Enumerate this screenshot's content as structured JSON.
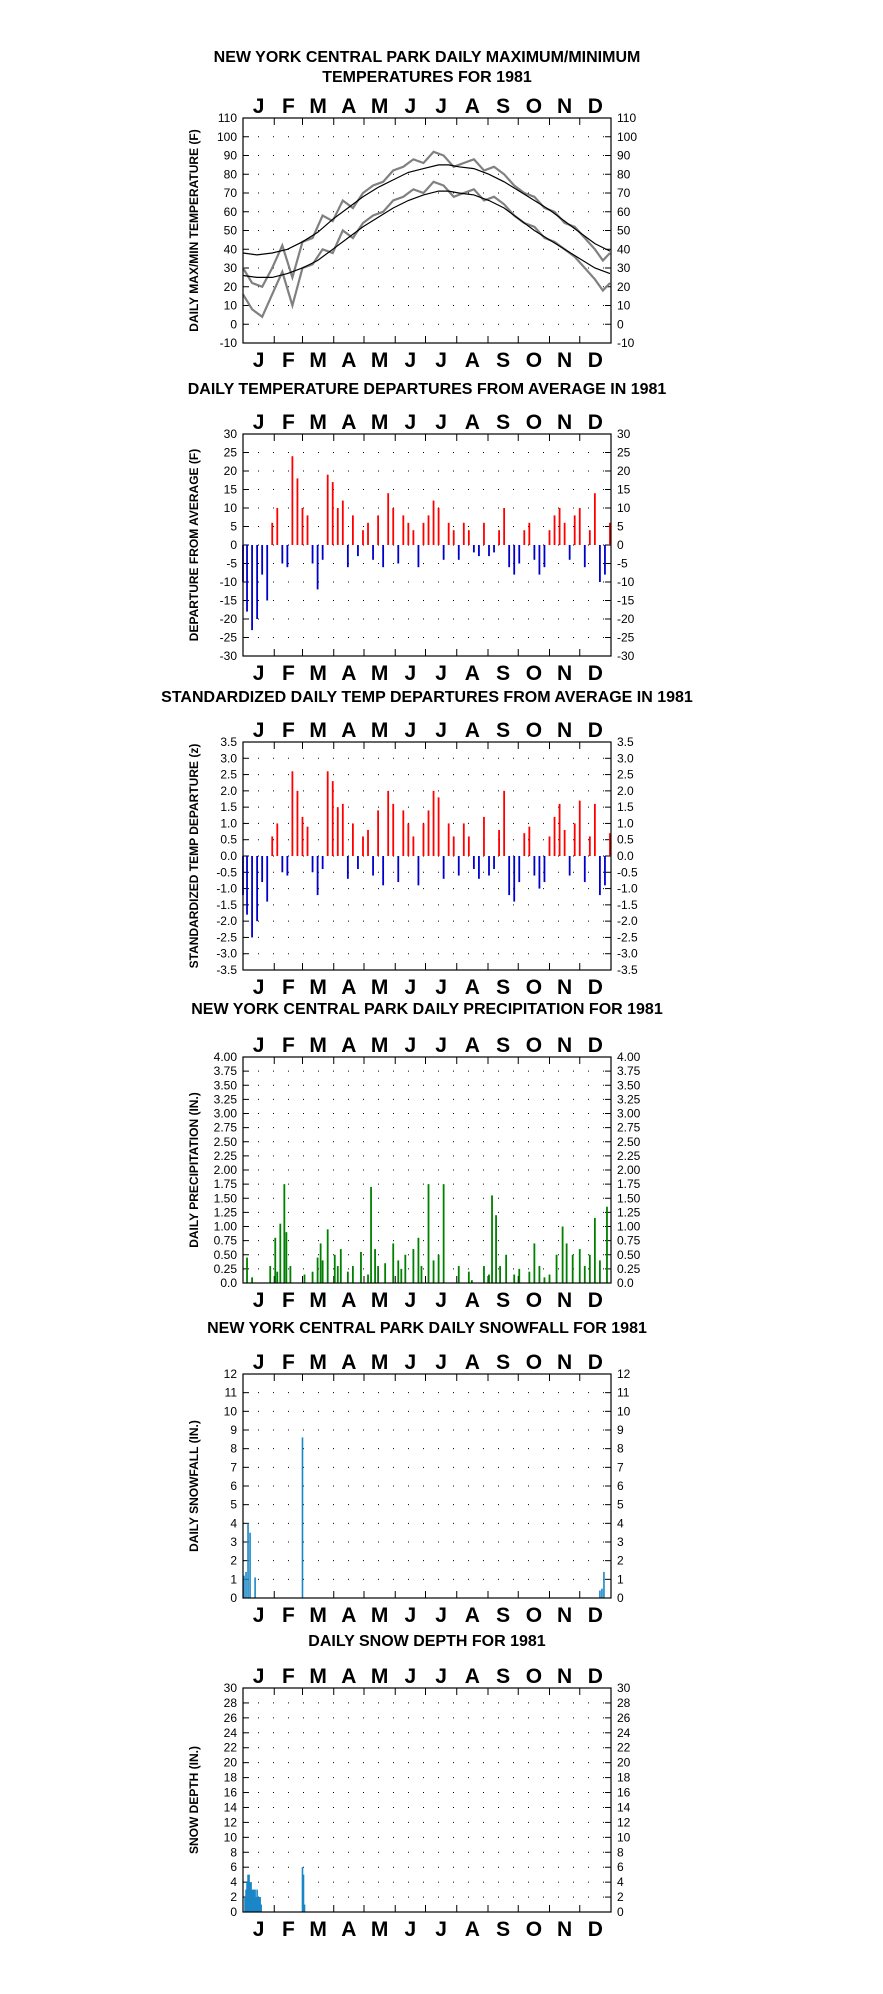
{
  "months": [
    "J",
    "F",
    "M",
    "A",
    "M",
    "J",
    "J",
    "A",
    "S",
    "O",
    "N",
    "D"
  ],
  "colors": {
    "maxmin": "#808080",
    "departure_pos": "#ff0000",
    "departure_neg": "#0000cc",
    "precip": "#008000",
    "snow": "#1a86c8",
    "axis": "#000000"
  },
  "chart_data": [
    {
      "type": "line",
      "title_lines": [
        "NEW YORK CENTRAL PARK DAILY MAXIMUM/MINIMUM",
        "TEMPERATURES FOR 1981"
      ],
      "ylabel": "DAILY MAX/MIN TEMPERATURE (F)",
      "ylim": [
        -10,
        110
      ],
      "yticks": [
        "-10",
        "0",
        "10",
        "20",
        "30",
        "40",
        "50",
        "60",
        "70",
        "80",
        "90",
        "100",
        "110"
      ],
      "grid": true,
      "series": [
        {
          "key": "max",
          "x": [
            1,
            10,
            20,
            30,
            40,
            50,
            60,
            70,
            80,
            90,
            100,
            110,
            120,
            130,
            140,
            150,
            160,
            170,
            180,
            190,
            200,
            210,
            220,
            230,
            240,
            250,
            260,
            270,
            280,
            290,
            300,
            310,
            320,
            330,
            340,
            350,
            358,
            365
          ],
          "values": [
            30,
            22,
            20,
            30,
            42,
            25,
            44,
            46,
            58,
            55,
            66,
            62,
            70,
            74,
            76,
            82,
            84,
            88,
            86,
            92,
            90,
            84,
            86,
            88,
            82,
            84,
            80,
            74,
            70,
            68,
            62,
            60,
            54,
            52,
            46,
            40,
            34,
            38
          ]
        },
        {
          "key": "min",
          "x": [
            1,
            10,
            20,
            30,
            40,
            50,
            60,
            70,
            80,
            90,
            100,
            110,
            120,
            130,
            140,
            150,
            160,
            170,
            180,
            190,
            200,
            210,
            220,
            230,
            240,
            250,
            260,
            270,
            280,
            290,
            300,
            310,
            320,
            330,
            340,
            350,
            358,
            365
          ],
          "values": [
            16,
            8,
            4,
            16,
            28,
            10,
            30,
            32,
            40,
            38,
            50,
            46,
            54,
            58,
            60,
            66,
            68,
            72,
            70,
            76,
            74,
            68,
            70,
            72,
            66,
            68,
            64,
            58,
            54,
            52,
            46,
            44,
            40,
            36,
            30,
            24,
            18,
            22
          ]
        },
        {
          "key": "normal_max",
          "x": [
            1,
            15,
            30,
            45,
            60,
            75,
            90,
            105,
            120,
            135,
            150,
            165,
            180,
            195,
            205,
            215,
            230,
            245,
            260,
            275,
            290,
            305,
            320,
            335,
            350,
            365
          ],
          "values": [
            38,
            37,
            38,
            40,
            44,
            49,
            56,
            62,
            68,
            73,
            77,
            81,
            83,
            85,
            85,
            84,
            83,
            80,
            76,
            71,
            66,
            61,
            55,
            49,
            43,
            39
          ]
        },
        {
          "key": "normal_min",
          "x": [
            1,
            15,
            30,
            45,
            60,
            75,
            90,
            105,
            120,
            135,
            150,
            165,
            180,
            195,
            205,
            215,
            230,
            245,
            260,
            275,
            290,
            305,
            320,
            335,
            350,
            365
          ],
          "values": [
            26,
            25,
            25,
            27,
            30,
            34,
            40,
            46,
            52,
            57,
            62,
            66,
            69,
            71,
            71,
            70,
            69,
            66,
            62,
            56,
            50,
            45,
            40,
            35,
            30,
            27
          ]
        }
      ]
    },
    {
      "type": "bar",
      "title_lines": [
        "DAILY TEMPERATURE DEPARTURES FROM AVERAGE IN 1981"
      ],
      "ylabel": "DEPARTURE FROM AVERAGE (F)",
      "ylim": [
        -30,
        30
      ],
      "yticks": [
        "-30",
        "-25",
        "-20",
        "-15",
        "-10",
        "-5",
        "0",
        "5",
        "10",
        "15",
        "20",
        "25",
        "30"
      ],
      "grid": true,
      "series": [
        {
          "key": "departure",
          "x": [
            1,
            5,
            10,
            15,
            20,
            25,
            30,
            35,
            40,
            45,
            50,
            55,
            60,
            65,
            70,
            75,
            80,
            85,
            90,
            95,
            100,
            105,
            110,
            115,
            120,
            125,
            130,
            135,
            140,
            145,
            150,
            155,
            160,
            165,
            170,
            175,
            180,
            185,
            190,
            195,
            200,
            205,
            210,
            215,
            220,
            225,
            230,
            235,
            240,
            245,
            250,
            255,
            260,
            265,
            270,
            275,
            280,
            285,
            290,
            295,
            300,
            305,
            310,
            315,
            320,
            325,
            330,
            335,
            340,
            345,
            350,
            355,
            360,
            365
          ],
          "values": [
            -10,
            -18,
            -23,
            -20,
            -8,
            -15,
            6,
            10,
            -5,
            -6,
            24,
            18,
            10,
            8,
            -5,
            -12,
            -4,
            19,
            17,
            10,
            12,
            -6,
            8,
            -3,
            4,
            6,
            -4,
            8,
            -6,
            14,
            10,
            -5,
            8,
            6,
            4,
            -6,
            6,
            8,
            12,
            10,
            -4,
            6,
            4,
            -4,
            6,
            4,
            -2,
            -3,
            6,
            -3,
            -2,
            4,
            10,
            -6,
            -8,
            -5,
            4,
            6,
            -4,
            -8,
            -6,
            4,
            8,
            10,
            6,
            -4,
            8,
            10,
            -6,
            4,
            14,
            -10,
            -8,
            6
          ]
        }
      ]
    },
    {
      "type": "bar",
      "title_lines": [
        "STANDARDIZED DAILY TEMP DEPARTURES FROM AVERAGE IN 1981"
      ],
      "ylabel": "STANDARDIZED TEMP DEPARTURE (z)",
      "ylim": [
        -3.5,
        3.5
      ],
      "yticks": [
        "-3.5",
        "-3.0",
        "-2.5",
        "-2.0",
        "-1.5",
        "-1.0",
        "-0.5",
        "0.0",
        "0.5",
        "1.0",
        "1.5",
        "2.0",
        "2.5",
        "3.0",
        "3.5"
      ],
      "yticks_left": [
        "-3.5",
        "-3.0",
        "-2.5",
        "-2.0",
        "-1.5",
        "-1.0",
        "-0.5",
        "0.0",
        "0.5",
        "1.0",
        "1.5",
        "2.0",
        "2.5",
        "3.0",
        "3.5"
      ],
      "yticks_right": [
        "-3.5",
        "-3.0",
        "-2.5",
        "-2.0",
        "-1.5",
        "-1.0",
        "-0.5",
        "0.0",
        "0.5",
        "1.0",
        "1.5",
        "2.0",
        "2.5",
        "3.0",
        "3.5"
      ],
      "grid": true,
      "series": [
        {
          "key": "zscore",
          "x": [
            1,
            5,
            10,
            15,
            20,
            25,
            30,
            35,
            40,
            45,
            50,
            55,
            60,
            65,
            70,
            75,
            80,
            85,
            90,
            95,
            100,
            105,
            110,
            115,
            120,
            125,
            130,
            135,
            140,
            145,
            150,
            155,
            160,
            165,
            170,
            175,
            180,
            185,
            190,
            195,
            200,
            205,
            210,
            215,
            220,
            225,
            230,
            235,
            240,
            245,
            250,
            255,
            260,
            265,
            270,
            275,
            280,
            285,
            290,
            295,
            300,
            305,
            310,
            315,
            320,
            325,
            330,
            335,
            340,
            345,
            350,
            355,
            360,
            365
          ],
          "values": [
            -1.2,
            -1.8,
            -2.5,
            -2.0,
            -0.8,
            -1.4,
            0.6,
            1.0,
            -0.5,
            -0.6,
            2.6,
            2.0,
            1.2,
            0.9,
            -0.5,
            -1.2,
            -0.4,
            2.6,
            2.3,
            1.5,
            1.6,
            -0.7,
            1.0,
            -0.4,
            0.6,
            0.8,
            -0.6,
            1.4,
            -0.9,
            2.0,
            1.6,
            -0.8,
            1.4,
            1.0,
            0.6,
            -0.9,
            1.0,
            1.4,
            2.0,
            1.8,
            -0.7,
            1.0,
            0.6,
            -0.6,
            1.0,
            0.6,
            -0.4,
            -0.7,
            1.2,
            -0.6,
            -0.4,
            0.8,
            2.0,
            -1.2,
            -1.4,
            -0.8,
            0.7,
            0.9,
            -0.6,
            -1.0,
            -0.8,
            0.6,
            1.2,
            1.6,
            0.8,
            -0.6,
            1.0,
            1.7,
            -0.8,
            0.6,
            1.6,
            -1.2,
            -0.9,
            0.7
          ]
        }
      ]
    },
    {
      "type": "bar",
      "title_lines": [
        "NEW YORK CENTRAL PARK DAILY PRECIPITATION FOR 1981"
      ],
      "ylabel": "DAILY PRECIPITATION (IN.)",
      "ylim": [
        0,
        4
      ],
      "yticks": [
        "0.0",
        "0.25",
        "0.50",
        "0.75",
        "1.00",
        "1.25",
        "1.50",
        "1.75",
        "2.00",
        "2.25",
        "2.50",
        "2.75",
        "3.00",
        "3.25",
        "3.50",
        "3.75",
        "4.00"
      ],
      "grid": true,
      "series": [
        {
          "key": "precip",
          "x": [
            5,
            10,
            28,
            33,
            35,
            38,
            42,
            44,
            48,
            62,
            70,
            75,
            78,
            80,
            85,
            92,
            95,
            98,
            105,
            110,
            118,
            125,
            128,
            132,
            135,
            142,
            150,
            155,
            158,
            162,
            170,
            175,
            178,
            185,
            190,
            195,
            200,
            215,
            225,
            228,
            240,
            245,
            248,
            252,
            256,
            262,
            270,
            275,
            285,
            290,
            295,
            300,
            305,
            312,
            318,
            322,
            328,
            335,
            340,
            345,
            350,
            355,
            362
          ],
          "values": [
            0.45,
            0.1,
            0.3,
            0.8,
            0.2,
            1.05,
            1.75,
            0.9,
            0.3,
            0.15,
            0.2,
            0.45,
            0.7,
            0.4,
            0.95,
            0.5,
            0.3,
            0.6,
            0.2,
            0.3,
            0.55,
            0.15,
            1.7,
            0.6,
            0.3,
            0.35,
            0.7,
            0.4,
            0.25,
            0.5,
            0.6,
            0.8,
            0.3,
            1.75,
            0.4,
            0.5,
            1.75,
            0.3,
            0.2,
            0.05,
            0.3,
            0.15,
            1.55,
            1.2,
            0.3,
            0.5,
            0.15,
            0.25,
            0.2,
            0.7,
            0.3,
            0.1,
            0.15,
            0.5,
            1.0,
            0.7,
            0.5,
            0.6,
            0.3,
            0.5,
            1.15,
            0.4,
            1.35
          ]
        }
      ]
    },
    {
      "type": "bar",
      "title_lines": [
        "NEW YORK CENTRAL PARK DAILY SNOWFALL FOR 1981"
      ],
      "ylabel": "DAILY SNOWFALL (IN.)",
      "ylim": [
        0,
        12
      ],
      "yticks": [
        "0",
        "1",
        "2",
        "3",
        "4",
        "5",
        "6",
        "7",
        "8",
        "9",
        "10",
        "11",
        "12"
      ],
      "grid": true,
      "series": [
        {
          "key": "snowfall",
          "x": [
            2,
            4,
            6,
            8,
            13,
            60,
            355,
            357,
            359
          ],
          "values": [
            1.2,
            1.4,
            4.0,
            3.5,
            1.1,
            8.6,
            0.4,
            0.5,
            1.4
          ]
        }
      ]
    },
    {
      "type": "bar",
      "title_lines": [
        "DAILY SNOW DEPTH FOR 1981"
      ],
      "ylabel": "SNOW DEPTH (IN.)",
      "ylim": [
        0,
        30
      ],
      "yticks": [
        "0",
        "2",
        "4",
        "6",
        "8",
        "10",
        "12",
        "14",
        "16",
        "18",
        "20",
        "22",
        "24",
        "26",
        "28",
        "30"
      ],
      "grid": true,
      "series": [
        {
          "key": "snowdepth",
          "x": [
            3,
            4,
            5,
            6,
            7,
            8,
            9,
            10,
            11,
            12,
            13,
            14,
            15,
            16,
            17,
            18,
            19,
            60,
            61,
            62
          ],
          "values": [
            2,
            3,
            4,
            5,
            5,
            4,
            4,
            3,
            3,
            3,
            3,
            2,
            3,
            2,
            2,
            2,
            1,
            6,
            5,
            1
          ]
        }
      ]
    }
  ]
}
